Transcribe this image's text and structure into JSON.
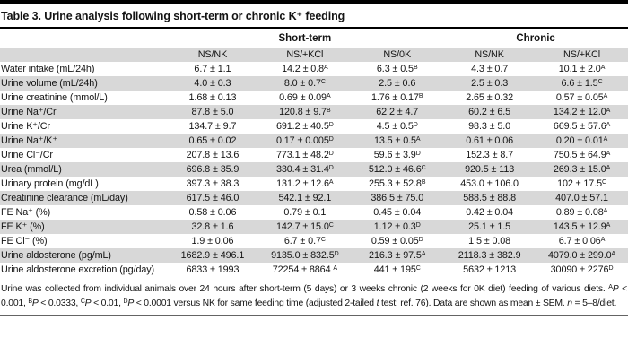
{
  "title": "Table 3. Urine analysis following short-term or chronic K⁺ feeding",
  "table": {
    "groups": [
      {
        "label": "Short-term",
        "span": 3
      },
      {
        "label": "Chronic",
        "span": 2
      }
    ],
    "columns": [
      "NS/NK",
      "NS/+KCl",
      "NS/0K",
      "NS/NK",
      "NS/+KCl"
    ],
    "rows": [
      {
        "label": "Water intake (mL/24h)",
        "values": [
          "6.7 ± 1.1",
          "14.2 ± 0.8^A",
          "6.3 ± 0.5^B",
          "4.3 ± 0.7",
          "10.1 ± 2.0^A"
        ]
      },
      {
        "label": "Urine volume (mL/24h)",
        "values": [
          "4.0 ± 0.3",
          "8.0 ± 0.7^C",
          "2.5 ± 0.6",
          "2.5 ± 0.3",
          "6.6 ± 1.5^C"
        ]
      },
      {
        "label": "Urine creatinine (mmol/L)",
        "values": [
          "1.68 ± 0.13",
          "0.69 ± 0.09^A",
          "1.76 ± 0.17^B",
          "2.65 ± 0.32",
          "0.57 ± 0.05^A"
        ]
      },
      {
        "label": "Urine Na⁺/Cr",
        "values": [
          "87.8 ± 5.0",
          "120.8 ± 9.7^B",
          "62.2 ± 4.7",
          "60.2 ± 6.5",
          "134.2 ± 12.0^A"
        ]
      },
      {
        "label": "Urine K⁺/Cr",
        "values": [
          "134.7 ± 9.7",
          "691.2 ± 40.5^D",
          "4.5 ± 0.5^D",
          "98.3 ± 5.0",
          "669.5 ± 57.6^A"
        ]
      },
      {
        "label": "Urine Na⁺/K⁺",
        "values": [
          "0.65 ± 0.02",
          "0.17 ± 0.005^D",
          "13.5 ± 0.5^A",
          "0.61 ± 0.06",
          "0.20 ± 0.01^A"
        ]
      },
      {
        "label": "Urine Cl⁻/Cr",
        "values": [
          "207.8 ± 13.6",
          "773.1 ± 48.2^D",
          "59.6 ± 3.9^D",
          "152.3 ± 8.7",
          "750.5 ± 64.9^A"
        ]
      },
      {
        "label": "Urea (mmol/L)",
        "values": [
          "696.8 ± 35.9",
          "330.4 ± 31.4^D",
          "512.0 ± 46.6^C",
          "920.5 ± 113",
          "269.3 ± 15.0^A"
        ]
      },
      {
        "label": "Urinary protein (mg/dL)",
        "values": [
          "397.3 ± 38.3",
          "131.2 ± 12.6^A",
          "255.3 ± 52.8^B",
          "453.0 ± 106.0",
          "102 ± 17.5^C"
        ]
      },
      {
        "label": "Creatinine clearance (mL/day)",
        "values": [
          "617.5 ± 46.0",
          "542.1 ± 92.1",
          "386.5 ± 75.0",
          "588.5 ± 88.8",
          "407.0 ± 57.1"
        ]
      },
      {
        "label": "FE Na⁺ (%)",
        "values": [
          "0.58 ± 0.06",
          "0.79 ± 0.1",
          "0.45 ± 0.04",
          "0.42 ± 0.04",
          "0.89 ± 0.08^A"
        ]
      },
      {
        "label": "FE K⁺ (%)",
        "values": [
          "32.8 ± 1.6",
          "142.7 ± 15.0^C",
          "1.12 ± 0.3^D",
          "25.1 ± 1.5",
          "143.5 ± 12.9^A"
        ]
      },
      {
        "label": "FE Cl⁻ (%)",
        "values": [
          "1.9 ± 0.06",
          "6.7 ± 0.7^C",
          "0.59 ± 0.05^D",
          "1.5 ± 0.08",
          "6.7 ± 0.06^A"
        ]
      },
      {
        "label": "Urine aldosterone (pg/mL)",
        "values": [
          "1682.9 ± 496.1",
          "9135.0 ± 832.5^D",
          "216.3 ± 97.5^A",
          "2118.3 ± 382.9",
          "4079.0 ± 299.0^A"
        ]
      },
      {
        "label": "Urine aldosterone excretion (pg/day)",
        "values": [
          "6833 ± 1993",
          "72254 ± 8864 ^A",
          "441 ± 195^C",
          "5632 ± 1213",
          "30090 ± 2276^D"
        ]
      }
    ]
  },
  "footnote": {
    "segments": [
      {
        "text": "Urine was collected from individual animals over 24 hours after short-term (5 days) or 3 weeks chronic (2 weeks for 0K diet) feeding of various diets. "
      },
      {
        "text": "A",
        "sup": true
      },
      {
        "text": "P",
        "italic": true
      },
      {
        "text": " < 0.001, "
      },
      {
        "text": "B",
        "sup": true
      },
      {
        "text": "P",
        "italic": true
      },
      {
        "text": " < 0.0333, "
      },
      {
        "text": "C",
        "sup": true
      },
      {
        "text": "P",
        "italic": true
      },
      {
        "text": " < 0.01, "
      },
      {
        "text": "D",
        "sup": true
      },
      {
        "text": "P",
        "italic": true
      },
      {
        "text": " < 0.0001 versus NK for same feeding time (adjusted 2-tailed "
      },
      {
        "text": "t",
        "italic": true
      },
      {
        "text": " test; ref. 76). Data are shown as mean ± SEM. "
      },
      {
        "text": "n",
        "italic": true
      },
      {
        "text": " = 5–8/diet."
      }
    ]
  },
  "colors": {
    "stripe_gray": "#d8d8d8",
    "top_rule": "#000000",
    "title_rule": "#000000",
    "bottom_rule": "#646464",
    "text": "#141414"
  }
}
